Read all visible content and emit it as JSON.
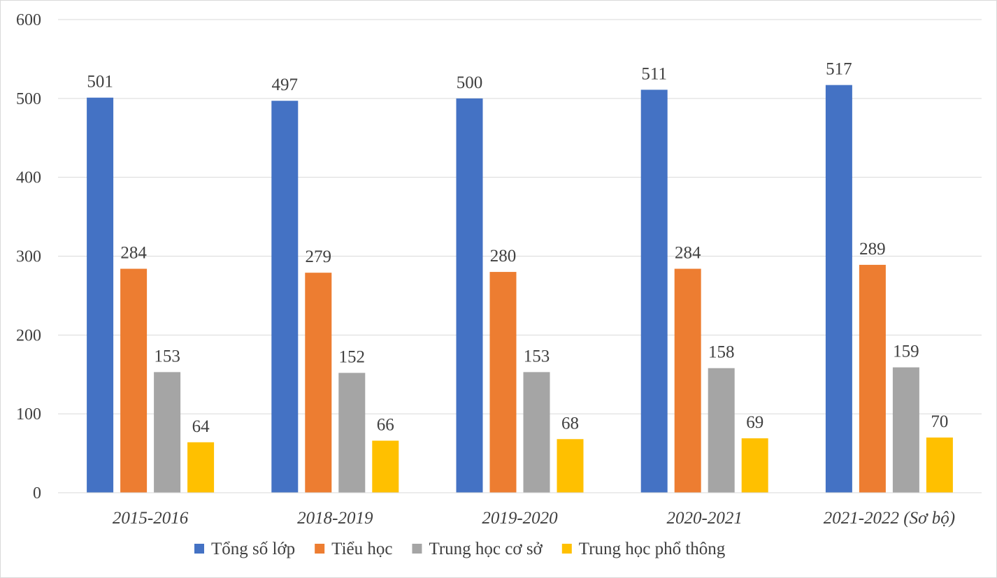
{
  "chart_data": {
    "type": "bar",
    "categories": [
      "2015-2016",
      "2018-2019",
      "2019-2020",
      "2020-2021",
      "2021-2022 (Sơ bộ)"
    ],
    "series": [
      {
        "name": "Tổng số lớp",
        "color": "#4472C4",
        "values": [
          501,
          497,
          500,
          511,
          517
        ]
      },
      {
        "name": "Tiểu học",
        "color": "#ED7D31",
        "values": [
          284,
          279,
          280,
          284,
          289
        ]
      },
      {
        "name": "Trung học cơ sở",
        "color": "#A5A5A5",
        "values": [
          153,
          152,
          153,
          158,
          159
        ]
      },
      {
        "name": "Trung học phổ thông",
        "color": "#FFC000",
        "values": [
          64,
          66,
          68,
          69,
          70
        ]
      }
    ],
    "yticks": [
      "0",
      "100",
      "200",
      "300",
      "400",
      "500",
      "600"
    ],
    "ylim": [
      0,
      600
    ],
    "grid": true,
    "legend_position": "bottom",
    "data_labels": true
  }
}
